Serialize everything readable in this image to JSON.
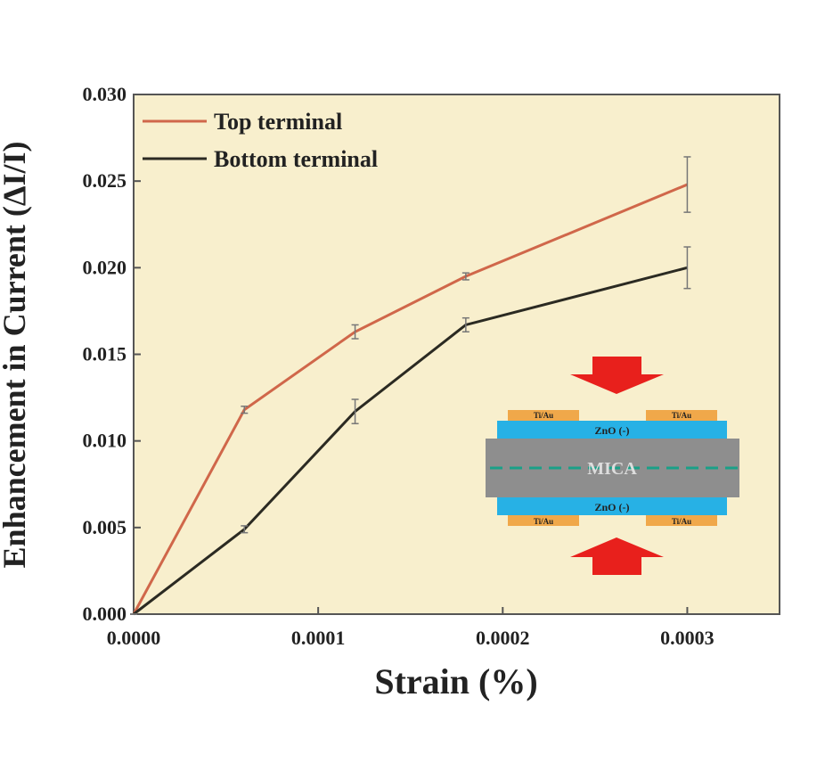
{
  "chart_data": {
    "type": "line",
    "xlabel": "Strain (%)",
    "ylabel": "Enhancement in Current (ΔI/I)",
    "x": [
      0,
      6e-05,
      0.00012,
      0.00018,
      0.0003
    ],
    "series": [
      {
        "name": "Top terminal",
        "color": "#d0674a",
        "values": [
          0,
          0.0118,
          0.0163,
          0.0195,
          0.0248
        ],
        "errors": [
          0,
          0.0002,
          0.0004,
          0.0002,
          0.0016
        ]
      },
      {
        "name": "Bottom terminal",
        "color": "#2b2a22",
        "values": [
          0,
          0.0049,
          0.0117,
          0.0167,
          0.02
        ],
        "errors": [
          0,
          0.0002,
          0.0007,
          0.0004,
          0.0012
        ]
      }
    ],
    "xlim": [
      0,
      0.00035
    ],
    "xticks": [
      {
        "value": 0,
        "label": "0.0000"
      },
      {
        "value": 0.0001,
        "label": "0.0001"
      },
      {
        "value": 0.0002,
        "label": "0.0002"
      },
      {
        "value": 0.0003,
        "label": "0.0003"
      }
    ],
    "ylim": [
      0,
      0.03
    ],
    "yticks": [
      {
        "value": 0,
        "label": "0.000"
      },
      {
        "value": 0.005,
        "label": "0.005"
      },
      {
        "value": 0.01,
        "label": "0.010"
      },
      {
        "value": 0.015,
        "label": "0.015"
      },
      {
        "value": 0.02,
        "label": "0.020"
      },
      {
        "value": 0.025,
        "label": "0.025"
      },
      {
        "value": 0.03,
        "label": "0.030"
      }
    ],
    "legend": "upper left",
    "annotations": [
      "Ti/Au",
      "Ti/Au",
      "ZnO (-)",
      "MICA",
      "ZnO (-)",
      "Ti/Au",
      "Ti/Au"
    ]
  }
}
